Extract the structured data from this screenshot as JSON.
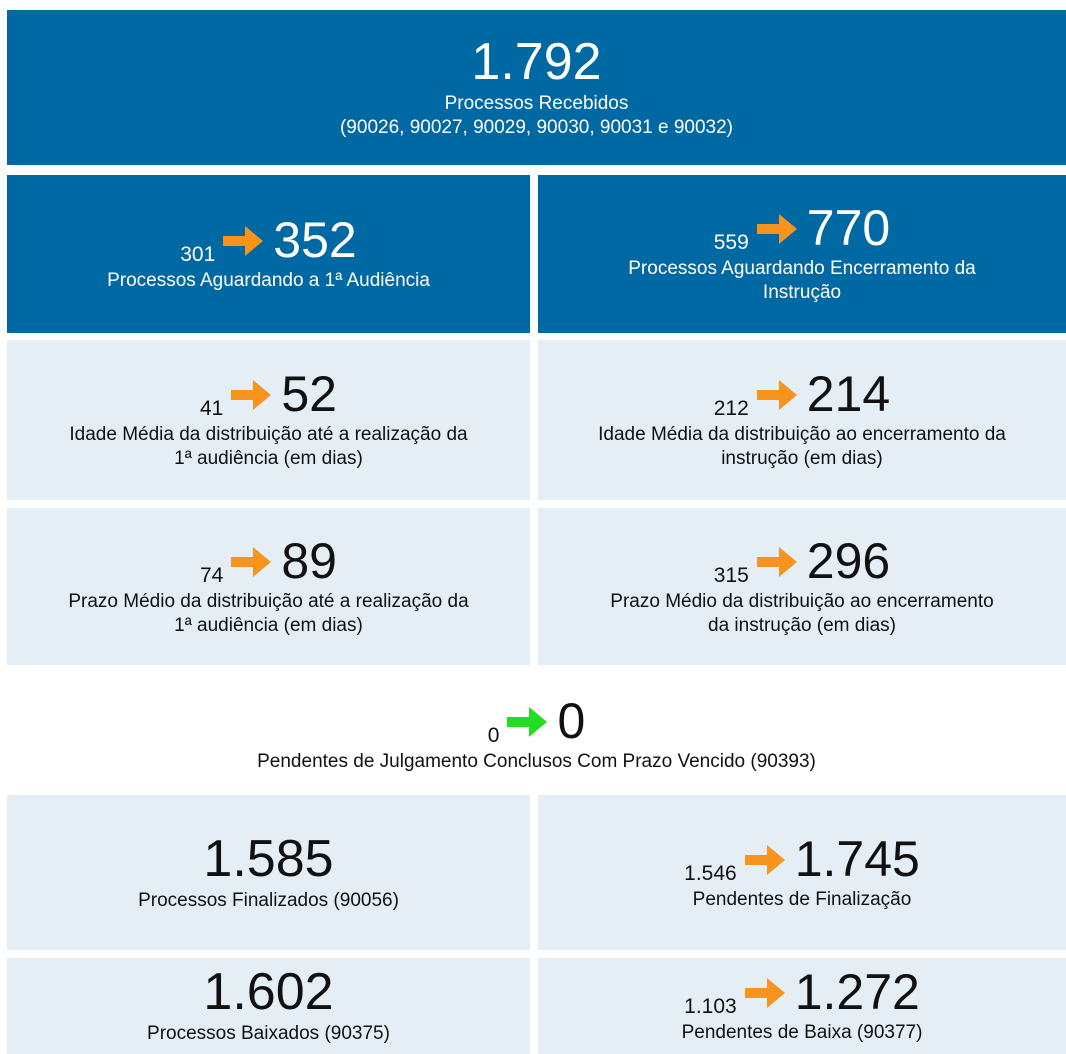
{
  "header": {
    "value": "1.792",
    "label": "Processos Recebidos",
    "sublabel": "(90026, 90027, 90029, 90030, 90031 e 90032)"
  },
  "rows": [
    {
      "style": "dark",
      "cells": [
        {
          "from": "301",
          "to": "352",
          "arrow": "orange",
          "label": [
            "Processos Aguardando a 1ª Audiência"
          ]
        },
        {
          "from": "559",
          "to": "770",
          "arrow": "orange",
          "label": [
            "Processos Aguardando Encerramento da",
            "Instrução"
          ]
        }
      ]
    },
    {
      "style": "light",
      "cells": [
        {
          "from": "41",
          "to": "52",
          "arrow": "orange",
          "label": [
            "Idade Média da distribuição até a realização da",
            "1ª audiência (em dias)"
          ]
        },
        {
          "from": "212",
          "to": "214",
          "arrow": "orange",
          "label": [
            "Idade Média da distribuição ao encerramento da",
            "instrução (em dias)"
          ]
        }
      ]
    },
    {
      "style": "light",
      "cells": [
        {
          "from": "74",
          "to": "89",
          "arrow": "orange",
          "label": [
            "Prazo Médio da distribuição até a realização da",
            "1ª audiência (em dias)"
          ]
        },
        {
          "from": "315",
          "to": "296",
          "arrow": "orange",
          "label": [
            "Prazo Médio da distribuição ao encerramento",
            "da instrução (em dias)"
          ]
        }
      ]
    },
    {
      "style": "plain",
      "cells": [
        {
          "from": "0",
          "to": "0",
          "arrow": "green",
          "label": [
            "Pendentes de Julgamento Conclusos Com Prazo Vencido (90393)"
          ]
        }
      ]
    },
    {
      "style": "light",
      "cells": [
        {
          "value": "1.585",
          "label": [
            "Processos Finalizados (90056)"
          ]
        },
        {
          "from": "1.546",
          "to": "1.745",
          "arrow": "orange",
          "label": [
            "Pendentes de Finalização"
          ]
        }
      ]
    },
    {
      "style": "light",
      "cells": [
        {
          "value": "1.602",
          "label": [
            "Processos Baixados (90375)"
          ]
        },
        {
          "from": "1.103",
          "to": "1.272",
          "arrow": "orange",
          "label": [
            "Pendentes de Baixa (90377)"
          ]
        }
      ]
    }
  ]
}
